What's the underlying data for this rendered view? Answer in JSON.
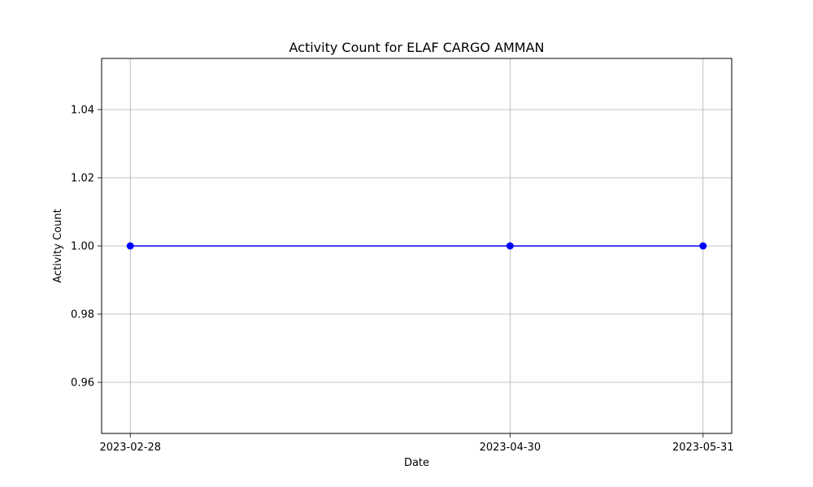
{
  "chart_data": {
    "type": "line",
    "title": "Activity Count for ELAF CARGO AMMAN",
    "xlabel": "Date",
    "ylabel": "Activity Count",
    "x": [
      "2023-02-28",
      "2023-04-30",
      "2023-05-31"
    ],
    "x_tick_labels": [
      "2023-02-28",
      "2023-04-30",
      "2023-05-31"
    ],
    "series": [
      {
        "values": [
          1,
          1,
          1
        ],
        "color": "#0000ff",
        "marker": "circle"
      }
    ],
    "ylim": [
      0.945,
      1.055
    ],
    "y_ticks": [
      0.96,
      0.98,
      1.0,
      1.02,
      1.04
    ],
    "y_tick_labels": [
      "0.96",
      "0.98",
      "1.00",
      "1.02",
      "1.04"
    ],
    "grid": true,
    "legend": "none"
  }
}
